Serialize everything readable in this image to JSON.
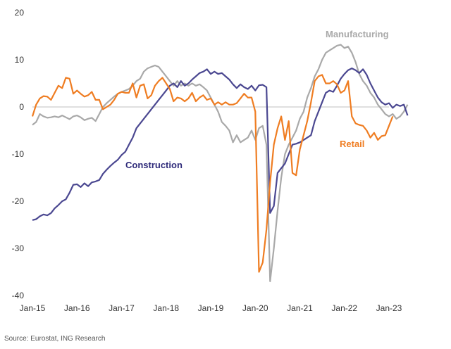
{
  "chart_data": {
    "type": "line",
    "title": "",
    "xlabel": "",
    "ylabel": "",
    "ylim": [
      -40,
      20
    ],
    "yticks": [
      20,
      10,
      0,
      -10,
      -20,
      -30,
      -40
    ],
    "x_tick_labels": [
      "Jan-15",
      "Jan-16",
      "Jan-17",
      "Jan-18",
      "Jan-19",
      "Jan-20",
      "Jan-21",
      "Jan-22",
      "Jan-23"
    ],
    "x_start": "Jan-15",
    "frequency": "monthly",
    "series": [
      {
        "name": "Construction",
        "color": "#4b4891",
        "values": [
          -24,
          -23.8,
          -23.2,
          -22.8,
          -23.0,
          -22.5,
          -21.5,
          -20.8,
          -20.0,
          -19.6,
          -18.2,
          -16.5,
          -16.4,
          -17.0,
          -16.2,
          -16.8,
          -16.0,
          -15.8,
          -15.5,
          -14.2,
          -13.3,
          -12.5,
          -11.8,
          -11.2,
          -10.2,
          -9.5,
          -8.0,
          -6.5,
          -4.5,
          -3.5,
          -2.5,
          -1.5,
          -0.5,
          0.5,
          1.5,
          2.5,
          3.5,
          4.5,
          5.0,
          4.2,
          5.5,
          4.5,
          5.0,
          5.8,
          6.5,
          7.2,
          7.5,
          8.0,
          7.0,
          7.5,
          7.0,
          7.2,
          6.5,
          5.8,
          4.8,
          4.0,
          4.8,
          4.2,
          3.8,
          4.5,
          3.5,
          4.6,
          4.7,
          4.2,
          -22.5,
          -21.0,
          -14.0,
          -13.0,
          -12.0,
          -10.0,
          -8.0,
          -7.8,
          -7.5,
          -7.0,
          -6.5,
          -6.0,
          -3.0,
          -1.0,
          1.0,
          3.0,
          3.5,
          3.2,
          4.5,
          6.0,
          7.0,
          7.8,
          8.2,
          7.8,
          7.2,
          8.0,
          6.8,
          5.0,
          3.5,
          2.0,
          1.0,
          0.5,
          0.8,
          -0.2,
          0.5,
          0.2,
          0.5,
          -1.8
        ]
      },
      {
        "name": "Manufacturing",
        "color": "#a9a9a9",
        "values": [
          -3.8,
          -3.2,
          -1.5,
          -2.0,
          -2.3,
          -2.2,
          -2.0,
          -2.2,
          -1.8,
          -2.2,
          -2.6,
          -2.0,
          -1.8,
          -2.2,
          -2.8,
          -2.5,
          -2.3,
          -3.0,
          -1.5,
          0.0,
          0.8,
          1.5,
          2.2,
          2.8,
          3.2,
          3.5,
          3.8,
          4.5,
          5.5,
          6.0,
          7.5,
          8.2,
          8.5,
          8.8,
          8.5,
          7.5,
          6.5,
          5.5,
          4.5,
          5.5,
          4.5,
          5.0,
          4.5,
          5.0,
          4.5,
          4.8,
          4.2,
          3.5,
          2.0,
          0.5,
          -1.0,
          -3.2,
          -4.0,
          -5.0,
          -7.5,
          -6.0,
          -7.5,
          -7.0,
          -6.5,
          -5.0,
          -7.0,
          -4.5,
          -4.0,
          -8.0,
          -37.0,
          -30.0,
          -22.0,
          -15.0,
          -10.0,
          -8.0,
          -6.5,
          -5.0,
          -2.5,
          -1.0,
          2.0,
          4.0,
          6.5,
          8.0,
          10.0,
          11.5,
          12.0,
          12.5,
          13.0,
          13.2,
          12.5,
          12.8,
          11.5,
          9.5,
          7.0,
          5.5,
          4.5,
          3.0,
          2.0,
          0.5,
          -0.5,
          -1.5,
          -2.0,
          -1.5,
          -2.5,
          -2.0,
          -1.0,
          0.5
        ]
      },
      {
        "name": "Retail",
        "color": "#ef7d22",
        "values": [
          -2.0,
          0.5,
          1.8,
          2.3,
          2.2,
          1.5,
          3.0,
          4.5,
          4.0,
          6.2,
          6.0,
          2.8,
          3.5,
          2.8,
          2.2,
          2.5,
          3.2,
          1.5,
          1.5,
          -0.5,
          0.0,
          0.5,
          1.5,
          2.8,
          3.2,
          3.0,
          3.0,
          5.0,
          2.0,
          4.5,
          4.8,
          1.8,
          2.5,
          4.5,
          5.5,
          6.2,
          5.0,
          3.8,
          1.2,
          2.0,
          1.8,
          1.2,
          1.8,
          3.0,
          1.2,
          2.0,
          2.5,
          1.5,
          1.8,
          0.5,
          1.0,
          0.5,
          1.0,
          0.5,
          0.5,
          0.8,
          1.8,
          2.8,
          2.0,
          2.0,
          -1.0,
          -35.0,
          -33.0,
          -26.0,
          -16.0,
          -8.0,
          -4.5,
          -2.0,
          -7.0,
          -3.0,
          -14.0,
          -14.5,
          -9.0,
          -6.0,
          -3.0,
          1.0,
          5.5,
          6.5,
          6.8,
          5.0,
          5.0,
          5.5,
          4.8,
          3.0,
          3.5,
          5.5,
          -2.0,
          -3.5,
          -3.8,
          -4.0,
          -5.0,
          -6.5,
          -5.5,
          -7.0,
          -6.2,
          -6.0,
          -4.0,
          -2.0
        ]
      }
    ],
    "labels": {
      "construction": "Construction",
      "manufacturing": "Manufacturing",
      "retail": "Retail"
    },
    "source": "Source: Eurostat, ING Research"
  }
}
